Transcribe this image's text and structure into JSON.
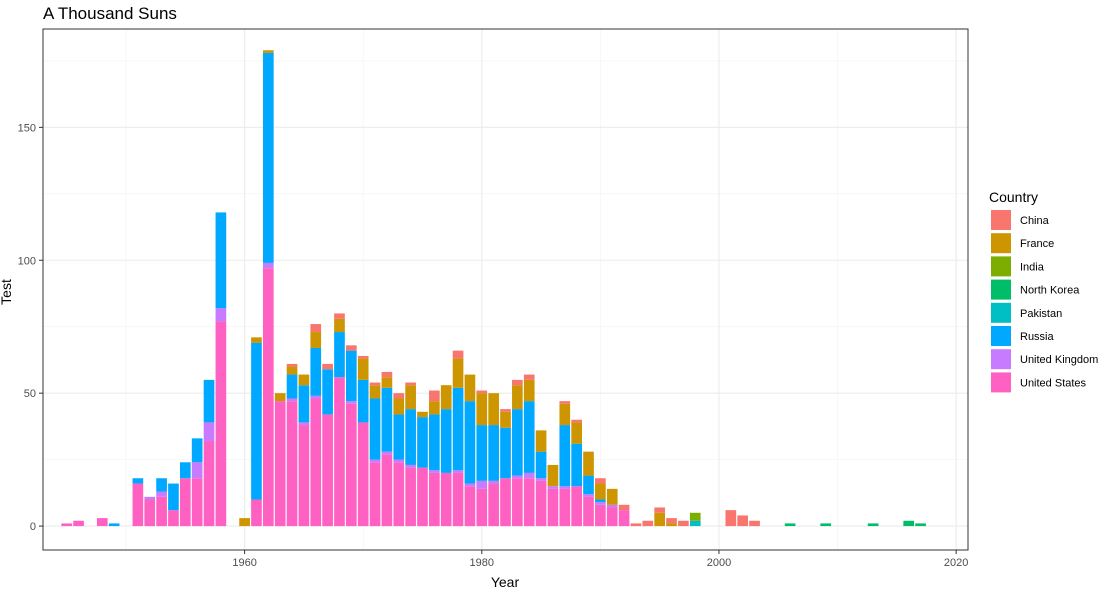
{
  "chart_data": {
    "type": "bar",
    "stacked": true,
    "title": "A Thousand Suns",
    "xlabel": "Year",
    "ylabel": "Test",
    "xlim": [
      1943,
      2021
    ],
    "ylim": [
      -9,
      187
    ],
    "x_ticks": [
      1960,
      1980,
      2000,
      2020
    ],
    "y_ticks": [
      0,
      50,
      100,
      150
    ],
    "grid": true,
    "legend_title": "Country",
    "legend_position": "right",
    "series": [
      {
        "name": "United States",
        "color": "#FF61C3",
        "points": [
          [
            1945,
            1
          ],
          [
            1946,
            2
          ],
          [
            1948,
            3
          ],
          [
            1951,
            16
          ],
          [
            1952,
            10
          ],
          [
            1953,
            11
          ],
          [
            1954,
            6
          ],
          [
            1955,
            18
          ],
          [
            1956,
            18
          ],
          [
            1957,
            32
          ],
          [
            1958,
            77
          ],
          [
            1961,
            10
          ],
          [
            1962,
            97
          ],
          [
            1963,
            47
          ],
          [
            1964,
            47
          ],
          [
            1965,
            38
          ],
          [
            1966,
            48
          ],
          [
            1967,
            42
          ],
          [
            1968,
            56
          ],
          [
            1969,
            46
          ],
          [
            1970,
            39
          ],
          [
            1971,
            24
          ],
          [
            1972,
            27
          ],
          [
            1973,
            24
          ],
          [
            1974,
            22
          ],
          [
            1975,
            22
          ],
          [
            1976,
            20
          ],
          [
            1977,
            20
          ],
          [
            1978,
            20
          ],
          [
            1979,
            15
          ],
          [
            1980,
            14
          ],
          [
            1981,
            16
          ],
          [
            1982,
            18
          ],
          [
            1983,
            18
          ],
          [
            1984,
            18
          ],
          [
            1985,
            17
          ],
          [
            1986,
            14
          ],
          [
            1987,
            14
          ],
          [
            1988,
            15
          ],
          [
            1989,
            11
          ],
          [
            1990,
            8
          ],
          [
            1991,
            7
          ],
          [
            1992,
            6
          ]
        ]
      },
      {
        "name": "United Kingdom",
        "color": "#C77CFF",
        "points": [
          [
            1952,
            1
          ],
          [
            1953,
            2
          ],
          [
            1956,
            6
          ],
          [
            1957,
            7
          ],
          [
            1958,
            5
          ],
          [
            1962,
            2
          ],
          [
            1964,
            1
          ],
          [
            1965,
            1
          ],
          [
            1966,
            1
          ],
          [
            1969,
            1
          ],
          [
            1971,
            1
          ],
          [
            1972,
            1
          ],
          [
            1973,
            1
          ],
          [
            1974,
            1
          ],
          [
            1976,
            1
          ],
          [
            1978,
            1
          ],
          [
            1979,
            1
          ],
          [
            1980,
            3
          ],
          [
            1981,
            1
          ],
          [
            1983,
            1
          ],
          [
            1984,
            2
          ],
          [
            1985,
            1
          ],
          [
            1986,
            1
          ],
          [
            1987,
            1
          ],
          [
            1989,
            1
          ],
          [
            1990,
            1
          ],
          [
            1991,
            1
          ]
        ]
      },
      {
        "name": "Pakistan",
        "color": "#00BFC4",
        "points": [
          [
            1998,
            2
          ]
        ]
      },
      {
        "name": "Russia",
        "color": "#00A9FF",
        "points": [
          [
            1949,
            1
          ],
          [
            1951,
            2
          ],
          [
            1953,
            5
          ],
          [
            1954,
            10
          ],
          [
            1955,
            6
          ],
          [
            1956,
            9
          ],
          [
            1957,
            16
          ],
          [
            1958,
            36
          ],
          [
            1961,
            59
          ],
          [
            1962,
            79
          ],
          [
            1963,
            0
          ],
          [
            1964,
            9
          ],
          [
            1965,
            14
          ],
          [
            1966,
            18
          ],
          [
            1967,
            17
          ],
          [
            1968,
            17
          ],
          [
            1969,
            19
          ],
          [
            1970,
            16
          ],
          [
            1971,
            23
          ],
          [
            1972,
            24
          ],
          [
            1973,
            17
          ],
          [
            1974,
            21
          ],
          [
            1975,
            19
          ],
          [
            1976,
            21
          ],
          [
            1977,
            24
          ],
          [
            1978,
            31
          ],
          [
            1979,
            31
          ],
          [
            1980,
            21
          ],
          [
            1981,
            21
          ],
          [
            1982,
            19
          ],
          [
            1983,
            25
          ],
          [
            1984,
            27
          ],
          [
            1985,
            10
          ],
          [
            1987,
            23
          ],
          [
            1988,
            16
          ],
          [
            1989,
            7
          ],
          [
            1990,
            1
          ]
        ]
      },
      {
        "name": "North Korea",
        "color": "#00BE67",
        "points": [
          [
            2006,
            1
          ],
          [
            2009,
            1
          ],
          [
            2013,
            1
          ],
          [
            2016,
            2
          ],
          [
            2017,
            1
          ]
        ]
      },
      {
        "name": "India",
        "color": "#7CAE00",
        "points": [
          [
            1998,
            3
          ]
        ]
      },
      {
        "name": "France",
        "color": "#CD9600",
        "points": [
          [
            1960,
            3
          ],
          [
            1961,
            2
          ],
          [
            1962,
            1
          ],
          [
            1963,
            3
          ],
          [
            1964,
            3
          ],
          [
            1965,
            4
          ],
          [
            1966,
            6
          ],
          [
            1968,
            5
          ],
          [
            1970,
            8
          ],
          [
            1971,
            5
          ],
          [
            1972,
            4
          ],
          [
            1973,
            6
          ],
          [
            1974,
            9
          ],
          [
            1975,
            2
          ],
          [
            1976,
            5
          ],
          [
            1977,
            9
          ],
          [
            1978,
            11
          ],
          [
            1979,
            10
          ],
          [
            1980,
            12
          ],
          [
            1981,
            12
          ],
          [
            1982,
            6
          ],
          [
            1983,
            9
          ],
          [
            1984,
            8
          ],
          [
            1985,
            8
          ],
          [
            1986,
            8
          ],
          [
            1987,
            8
          ],
          [
            1988,
            8
          ],
          [
            1989,
            9
          ],
          [
            1990,
            6
          ],
          [
            1991,
            6
          ],
          [
            1992,
            0
          ],
          [
            1995,
            5
          ],
          [
            1996,
            1
          ]
        ]
      },
      {
        "name": "China",
        "color": "#F8766D",
        "points": [
          [
            1964,
            1
          ],
          [
            1966,
            3
          ],
          [
            1967,
            2
          ],
          [
            1968,
            2
          ],
          [
            1969,
            2
          ],
          [
            1970,
            1
          ],
          [
            1971,
            1
          ],
          [
            1972,
            2
          ],
          [
            1973,
            2
          ],
          [
            1974,
            1
          ],
          [
            1976,
            4
          ],
          [
            1978,
            3
          ],
          [
            1980,
            1
          ],
          [
            1982,
            1
          ],
          [
            1983,
            2
          ],
          [
            1984,
            2
          ],
          [
            1987,
            1
          ],
          [
            1988,
            1
          ],
          [
            1990,
            2
          ],
          [
            1992,
            2
          ],
          [
            1993,
            1
          ],
          [
            1994,
            2
          ],
          [
            1995,
            2
          ],
          [
            1996,
            2
          ],
          [
            1997,
            2
          ],
          [
            2001,
            6
          ],
          [
            2002,
            4
          ],
          [
            2003,
            2
          ]
        ]
      }
    ]
  }
}
